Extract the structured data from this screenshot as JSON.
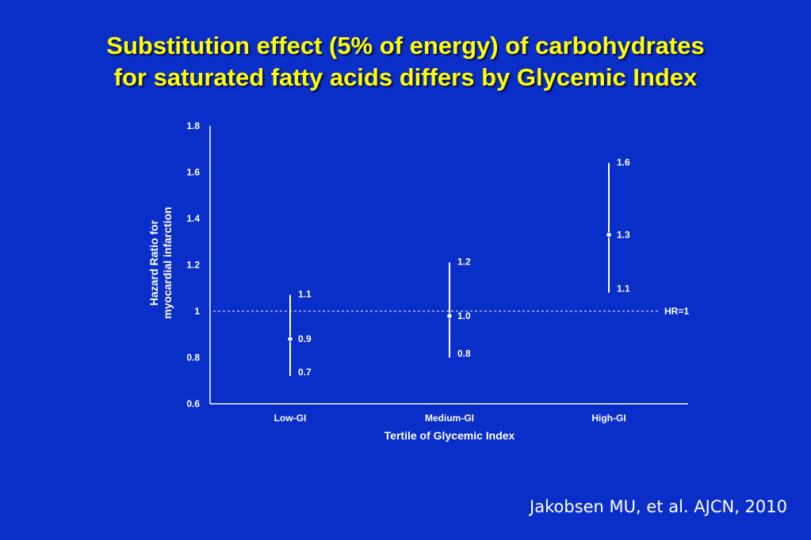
{
  "slide": {
    "title_line1": "Substitution effect (5% of energy) of carbohydrates",
    "title_line2": "for saturated fatty acids differs by Glycemic Index",
    "citation": "Jakobsen MU, et al. AJCN, 2010"
  },
  "chart_data": {
    "type": "scatter",
    "subtype": "point-with-confidence-interval",
    "xlabel": "Tertile of Glycemic Index",
    "ylabel_line1": "Hazard Ratio for",
    "ylabel_line2": "myocardial infarction",
    "ylim": [
      0.6,
      1.8
    ],
    "yticks": [
      "0.6",
      "0.8",
      "1",
      "1.2",
      "1.4",
      "1.6",
      "1.8"
    ],
    "categories": [
      "Low-GI",
      "Medium-GI",
      "High-GI"
    ],
    "points": [
      {
        "category": "Low-GI",
        "estimate": 0.88,
        "lower": 0.72,
        "upper": 1.07,
        "estimate_label": "0.9",
        "lower_label": "0.7",
        "upper_label": "1.1"
      },
      {
        "category": "Medium-GI",
        "estimate": 0.98,
        "lower": 0.8,
        "upper": 1.21,
        "estimate_label": "1.0",
        "lower_label": "0.8",
        "upper_label": "1.2"
      },
      {
        "category": "High-GI",
        "estimate": 1.33,
        "lower": 1.08,
        "upper": 1.64,
        "estimate_label": "1.3",
        "lower_label": "1.1",
        "upper_label": "1.6"
      }
    ],
    "reference_line": {
      "value": 1,
      "label": "HR=1",
      "style": "dashed"
    },
    "grid": false,
    "colors": {
      "background": "#0a2ec8",
      "marks": "#ffffff",
      "title": "#ffff00"
    }
  }
}
